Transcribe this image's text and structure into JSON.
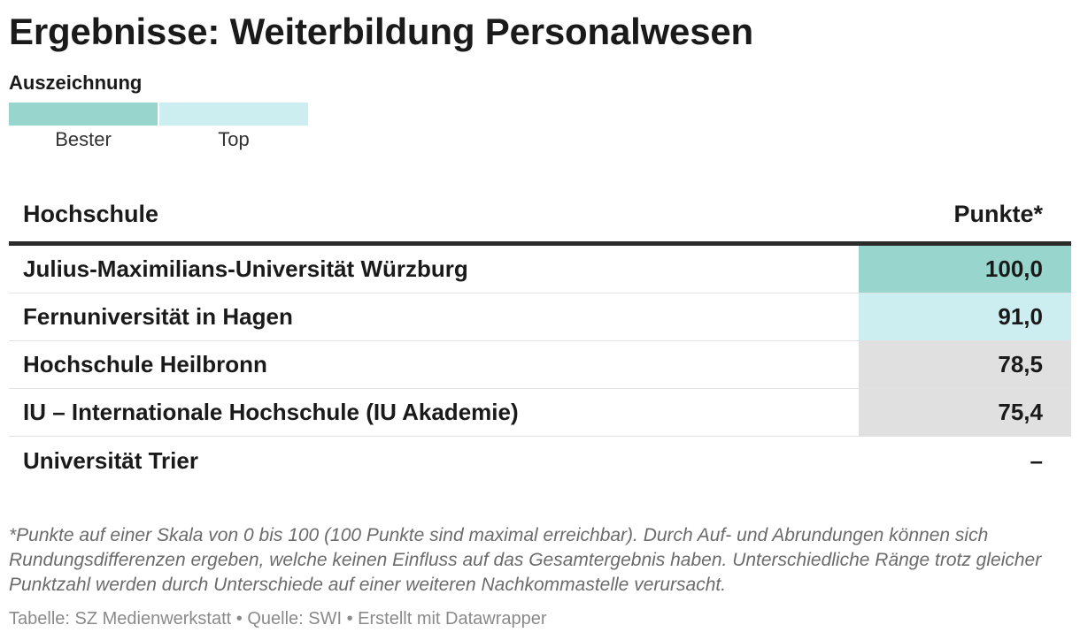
{
  "title": "Ergebnisse: Weiterbildung Personalwesen",
  "legend": {
    "title": "Auszeichnung",
    "items": [
      {
        "label": "Bester",
        "color": "#98d6cd"
      },
      {
        "label": "Top",
        "color": "#cdeef0"
      }
    ]
  },
  "colors": {
    "bester": "#98d6cd",
    "top": "#cdeef0",
    "neutral": "#e0e0e0",
    "header_rule": "#2b2b2b"
  },
  "chart_data": {
    "type": "table",
    "columns": [
      "Hochschule",
      "Punkte*"
    ],
    "rows": [
      {
        "name": "Julius-Maximilians-Universität Würzburg",
        "value": 100.0,
        "display": "100,0",
        "award": "Bester"
      },
      {
        "name": "Fernuniversität in Hagen",
        "value": 91.0,
        "display": "91,0",
        "award": "Top"
      },
      {
        "name": "Hochschule Heilbronn",
        "value": 78.5,
        "display": "78,5",
        "award": "none"
      },
      {
        "name": "IU – Internationale Hochschule (IU Akademie)",
        "value": 75.4,
        "display": "75,4",
        "award": "none"
      },
      {
        "name": "Universität Trier",
        "value": null,
        "display": "–",
        "award": "no-data"
      }
    ]
  },
  "note": "*Punkte auf einer Skala von 0 bis 100 (100 Punkte sind maximal erreichbar). Durch Auf- und Abrundungen können sich Rundungsdifferenzen ergeben, welche keinen Einfluss auf das Gesamtergebnis haben. Unterschiedliche Ränge trotz gleicher Punktzahl werden durch Unterschiede auf einer weiteren Nachkommastelle verursacht.",
  "footer": "Tabelle: SZ Medienwerkstatt • Quelle: SWI • Erstellt mit Datawrapper"
}
